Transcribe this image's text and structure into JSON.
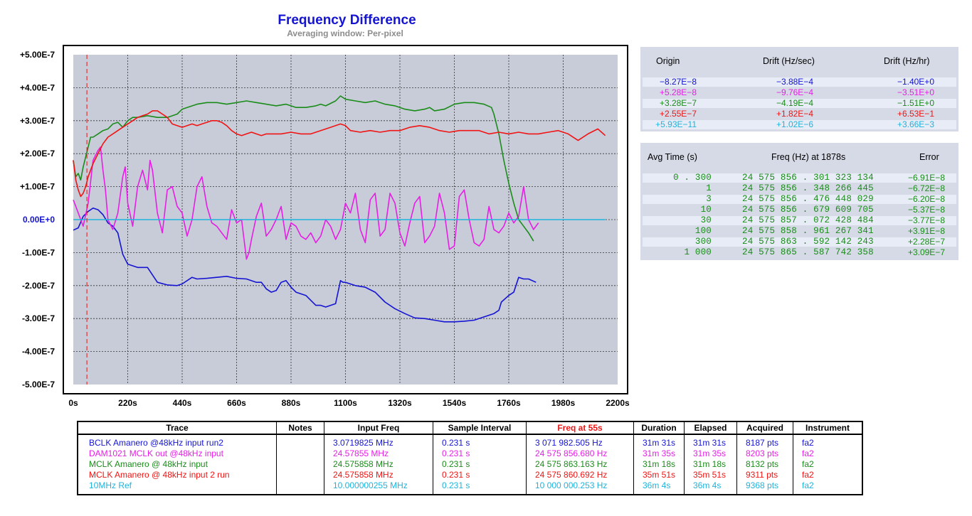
{
  "title": "Frequency Difference",
  "subtitle": "Averaging window: Per-pixel",
  "colors": {
    "blue": "#1414d2",
    "magenta": "#e61ee6",
    "green": "#1a8c1a",
    "red": "#f01414",
    "cyan": "#1eb4dc",
    "plot_bg": "#c8ccd8",
    "axis_text": "#000000"
  },
  "chart_data": {
    "type": "line",
    "title": "Frequency Difference",
    "subtitle": "Averaging window: Per-pixel",
    "xlim": [
      0,
      2200
    ],
    "ylim": [
      -5e-07,
      5e-07
    ],
    "x_ticks": [
      "0s",
      "220s",
      "440s",
      "660s",
      "880s",
      "1100s",
      "1320s",
      "1540s",
      "1760s",
      "1980s",
      "2200s"
    ],
    "y_ticks": [
      "+5.00E-7",
      "+4.00E-7",
      "+3.00E-7",
      "+2.00E-7",
      "+1.00E-7",
      "0.00E+0",
      "-1.00E-7",
      "-2.00E-7",
      "-3.00E-7",
      "-4.00E-7",
      "-5.00E-7"
    ],
    "marker_x": 55,
    "grid": true,
    "series": [
      {
        "name": "BCLK Amanero @48kHz input run2",
        "color": "#1414d2",
        "x": [
          0,
          20,
          40,
          60,
          80,
          100,
          120,
          140,
          160,
          180,
          200,
          220,
          260,
          300,
          340,
          380,
          420,
          440,
          480,
          500,
          540,
          580,
          620,
          660,
          700,
          740,
          760,
          780,
          800,
          820,
          840,
          860,
          880,
          900,
          940,
          980,
          1000,
          1020,
          1060,
          1080,
          1090,
          1100,
          1140,
          1180,
          1220,
          1260,
          1300,
          1340,
          1380,
          1420,
          1460,
          1500,
          1540,
          1580,
          1620,
          1660,
          1700,
          1720,
          1730,
          1760,
          1780,
          1800,
          1820,
          1840,
          1870
        ],
        "y": [
          -3.2e-08,
          -2.5e-08,
          1e-08,
          2.5e-08,
          3.5e-08,
          3e-08,
          1.5e-08,
          -1e-08,
          -2e-08,
          -4e-08,
          -1.05e-07,
          -1.35e-07,
          -1.45e-07,
          -1.45e-07,
          -1.9e-07,
          -1.98e-07,
          -2e-07,
          -1.95e-07,
          -1.75e-07,
          -1.8e-07,
          -1.78e-07,
          -1.75e-07,
          -1.72e-07,
          -1.78e-07,
          -1.8e-07,
          -1.9e-07,
          -1.9e-07,
          -2.1e-07,
          -2.2e-07,
          -2.15e-07,
          -1.9e-07,
          -1.85e-07,
          -2.05e-07,
          -2.2e-07,
          -2.3e-07,
          -2.6e-07,
          -2.6e-07,
          -2.65e-07,
          -2.55e-07,
          -1.85e-07,
          -1.9e-07,
          -1.9e-07,
          -2e-07,
          -2.05e-07,
          -2.2e-07,
          -2.5e-07,
          -2.7e-07,
          -2.85e-07,
          -2.98e-07,
          -3e-07,
          -3.05e-07,
          -3.1e-07,
          -3.1e-07,
          -3.08e-07,
          -3.05e-07,
          -2.95e-07,
          -2.85e-07,
          -2.75e-07,
          -2.5e-07,
          -2.3e-07,
          -2.2e-07,
          -1.75e-07,
          -1.8e-07,
          -1.8e-07,
          -1.9e-07
        ]
      },
      {
        "name": "DAM1021 MCLK out @48kHz input",
        "color": "#e61ee6",
        "x": [
          0,
          10,
          20,
          30,
          40,
          60,
          80,
          100,
          110,
          120,
          130,
          140,
          160,
          180,
          200,
          210,
          220,
          240,
          260,
          280,
          300,
          310,
          320,
          340,
          360,
          380,
          400,
          420,
          440,
          460,
          480,
          500,
          520,
          540,
          560,
          580,
          600,
          620,
          640,
          660,
          680,
          700,
          710,
          720,
          740,
          760,
          780,
          800,
          820,
          840,
          860,
          880,
          900,
          920,
          940,
          960,
          980,
          1000,
          1020,
          1040,
          1060,
          1080,
          1100,
          1120,
          1140,
          1160,
          1180,
          1200,
          1220,
          1240,
          1260,
          1280,
          1300,
          1320,
          1340,
          1360,
          1380,
          1400,
          1420,
          1440,
          1460,
          1480,
          1500,
          1520,
          1540,
          1560,
          1580,
          1600,
          1620,
          1640,
          1660,
          1680,
          1700,
          1720,
          1740,
          1760,
          1780,
          1800,
          1820,
          1840,
          1860,
          1880
        ],
        "y": [
          6e-08,
          4e-08,
          2e-08,
          0,
          -2e-08,
          5e-08,
          1.8e-07,
          2.1e-07,
          2.2e-07,
          1.5e-07,
          9e-08,
          0,
          -3e-08,
          2e-08,
          1.3e-07,
          1.6e-07,
          5e-08,
          -2e-08,
          1e-07,
          1.5e-07,
          9e-08,
          1.8e-07,
          1.5e-07,
          2e-08,
          -4e-08,
          9e-08,
          1e-07,
          4e-08,
          2e-08,
          -5e-08,
          0,
          1e-07,
          1.3e-07,
          4e-08,
          -1e-08,
          -2e-08,
          -4e-08,
          -6e-08,
          3e-08,
          -1e-08,
          0,
          -1.2e-07,
          -1e-07,
          -6e-08,
          1e-08,
          5e-08,
          -5e-08,
          -3e-08,
          0,
          4e-08,
          -6e-08,
          -1e-08,
          -2e-08,
          -5e-08,
          -6e-08,
          -4e-08,
          -7e-08,
          -5e-08,
          0,
          -2e-08,
          -6e-08,
          -3e-08,
          5e-08,
          2e-08,
          8e-08,
          -3e-08,
          -7e-08,
          6e-08,
          8e-08,
          -5e-08,
          -3e-08,
          8e-08,
          5e-08,
          -4e-08,
          -8e-08,
          -1e-08,
          5e-08,
          7e-08,
          -7e-08,
          -5e-08,
          -2e-08,
          8e-08,
          2e-08,
          -9e-08,
          -8e-08,
          7e-08,
          9e-08,
          0,
          -7e-08,
          -8e-08,
          -6e-08,
          4e-08,
          -3e-08,
          -4e-08,
          -2e-08,
          2e-08,
          -1e-08,
          1e-08,
          1e-07,
          0,
          -3e-08,
          -1e-08
        ]
      },
      {
        "name": "MCLK Amanero @ 48kHz input",
        "color": "#1a8c1a",
        "x": [
          0,
          10,
          20,
          30,
          40,
          50,
          60,
          70,
          80,
          100,
          120,
          140,
          160,
          180,
          200,
          220,
          240,
          260,
          300,
          340,
          380,
          420,
          440,
          460,
          500,
          540,
          580,
          620,
          660,
          700,
          740,
          780,
          820,
          860,
          880,
          900,
          940,
          980,
          1000,
          1020,
          1060,
          1080,
          1100,
          1140,
          1180,
          1220,
          1260,
          1300,
          1340,
          1380,
          1420,
          1440,
          1460,
          1500,
          1540,
          1580,
          1620,
          1660,
          1690,
          1700,
          1720,
          1740,
          1760,
          1780,
          1800,
          1820,
          1840,
          1860
        ],
        "y": [
          1.8e-07,
          1.3e-07,
          1.4e-07,
          1.2e-07,
          1.6e-07,
          1.9e-07,
          2.2e-07,
          2.5e-07,
          2.5e-07,
          2.6e-07,
          2.7e-07,
          2.75e-07,
          2.9e-07,
          2.95e-07,
          2.8e-07,
          3e-07,
          3.1e-07,
          3.1e-07,
          3.15e-07,
          3.1e-07,
          3.1e-07,
          3.2e-07,
          3.35e-07,
          3.4e-07,
          3.5e-07,
          3.55e-07,
          3.55e-07,
          3.5e-07,
          3.55e-07,
          3.6e-07,
          3.55e-07,
          3.5e-07,
          3.45e-07,
          3.5e-07,
          3.45e-07,
          3.4e-07,
          3.4e-07,
          3.45e-07,
          3.5e-07,
          3.45e-07,
          3.6e-07,
          3.75e-07,
          3.65e-07,
          3.6e-07,
          3.55e-07,
          3.6e-07,
          3.5e-07,
          3.45e-07,
          3.35e-07,
          3.3e-07,
          3.35e-07,
          3.4e-07,
          3.3e-07,
          3.35e-07,
          3.5e-07,
          3.55e-07,
          3.55e-07,
          3.5e-07,
          3.4e-07,
          3.2e-07,
          2.6e-07,
          1.8e-07,
          1.1e-07,
          5e-08,
          0,
          -2e-08,
          -4e-08,
          -6.5e-08
        ]
      },
      {
        "name": "MCLK Amanero @ 48kHz input 2 run",
        "color": "#f01414",
        "x": [
          0,
          10,
          20,
          30,
          40,
          50,
          60,
          70,
          80,
          100,
          120,
          140,
          160,
          180,
          200,
          220,
          240,
          260,
          280,
          300,
          320,
          340,
          360,
          380,
          400,
          420,
          440,
          460,
          480,
          500,
          520,
          540,
          560,
          580,
          600,
          620,
          640,
          660,
          680,
          700,
          720,
          740,
          760,
          780,
          800,
          840,
          880,
          920,
          960,
          1000,
          1040,
          1080,
          1100,
          1120,
          1160,
          1200,
          1240,
          1280,
          1320,
          1360,
          1400,
          1440,
          1480,
          1520,
          1560,
          1600,
          1640,
          1680,
          1720,
          1760,
          1800,
          1840,
          1880,
          1920,
          1960,
          2000,
          2040,
          2080,
          2120,
          2150
        ],
        "y": [
          1.8e-07,
          1.2e-07,
          9e-08,
          7e-08,
          8e-08,
          1e-07,
          1.3e-07,
          1.5e-07,
          1.7e-07,
          2e-07,
          2.3e-07,
          2.5e-07,
          2.6e-07,
          2.7e-07,
          2.8e-07,
          2.9e-07,
          3e-07,
          3.1e-07,
          3.15e-07,
          3.2e-07,
          3.3e-07,
          3.3e-07,
          3.2e-07,
          3.1e-07,
          2.9e-07,
          2.85e-07,
          2.8e-07,
          2.85e-07,
          2.9e-07,
          2.85e-07,
          2.9e-07,
          2.95e-07,
          3e-07,
          3e-07,
          2.95e-07,
          2.85e-07,
          2.7e-07,
          2.6e-07,
          2.55e-07,
          2.6e-07,
          2.65e-07,
          2.6e-07,
          2.55e-07,
          2.6e-07,
          2.6e-07,
          2.6e-07,
          2.65e-07,
          2.6e-07,
          2.6e-07,
          2.7e-07,
          2.8e-07,
          2.9e-07,
          2.85e-07,
          2.7e-07,
          2.65e-07,
          2.7e-07,
          2.65e-07,
          2.7e-07,
          2.7e-07,
          2.8e-07,
          2.85e-07,
          2.8e-07,
          2.7e-07,
          2.65e-07,
          2.7e-07,
          2.7e-07,
          2.7e-07,
          2.6e-07,
          2.65e-07,
          2.6e-07,
          2.65e-07,
          2.6e-07,
          2.6e-07,
          2.65e-07,
          2.7e-07,
          2.6e-07,
          2.4e-07,
          2.6e-07,
          2.75e-07,
          2.55e-07
        ]
      },
      {
        "name": "10MHz Ref",
        "color": "#1eb4dc",
        "x": [
          0,
          2150
        ],
        "y": [
          0,
          0
        ]
      }
    ]
  },
  "origin_panel": {
    "headers": [
      "Origin",
      "Drift (Hz/sec)",
      "Drift (Hz/hr)"
    ],
    "rows": [
      {
        "origin": "−8.27E−8",
        "drift_s": "−3.88E−4",
        "drift_hr": "−1.40E+0",
        "color": "#1414d2"
      },
      {
        "origin": "+5.28E−8",
        "drift_s": "−9.76E−4",
        "drift_hr": "−3.51E+0",
        "color": "#e61ee6"
      },
      {
        "origin": "+3.28E−7",
        "drift_s": "−4.19E−4",
        "drift_hr": "−1.51E+0",
        "color": "#1a8c1a"
      },
      {
        "origin": "+2.55E−7",
        "drift_s": "+1.82E−4",
        "drift_hr": "+6.53E−1",
        "color": "#f01414"
      },
      {
        "origin": "+5.93E−11",
        "drift_s": "+1.02E−6",
        "drift_hr": "+3.66E−3",
        "color": "#1eb4dc"
      }
    ]
  },
  "avg_panel": {
    "headers": [
      "Avg Time (s)",
      "Freq (Hz) at 1878s",
      "Error"
    ],
    "color": "#1a8c1a",
    "rows": [
      {
        "avg": "0 . 300",
        "freq": "24  575  856 . 301  323  134",
        "err": "−6.91E−8"
      },
      {
        "avg": "1",
        "freq": "24  575  856 . 348  266  445",
        "err": "−6.72E−8"
      },
      {
        "avg": "3",
        "freq": "24  575  856 . 476  448  029",
        "err": "−6.20E−8"
      },
      {
        "avg": "10",
        "freq": "24  575  856 . 679  609  705",
        "err": "−5.37E−8"
      },
      {
        "avg": "30",
        "freq": "24  575  857 . 072  428  484",
        "err": "−3.77E−8"
      },
      {
        "avg": "100",
        "freq": "24  575  858 . 961  267  341",
        "err": "+3.91E−8"
      },
      {
        "avg": "300",
        "freq": "24  575  863 . 592  142  243",
        "err": "+2.28E−7"
      },
      {
        "avg": "1  000",
        "freq": "24  575  865 . 587  742  358",
        "err": "+3.09E−7"
      }
    ]
  },
  "trace_table": {
    "headers": [
      "Trace",
      "Notes",
      "Input Freq",
      "Sample Interval",
      "Freq at 55s",
      "Duration",
      "Elapsed",
      "Acquired",
      "Instrument"
    ],
    "freq_header_color": "#f01414",
    "rows": [
      {
        "trace": "BCLK Amanero @48kHz input run2",
        "notes": "",
        "input": "3.0719825 MHz",
        "interval": "0.231 s",
        "freq55": "3 071 982.505 Hz",
        "duration": "31m 31s",
        "elapsed": "31m 31s",
        "acquired": "8187 pts",
        "instrument": "fa2",
        "color": "#1414d2"
      },
      {
        "trace": "DAM1021 MCLK out @48kHz input",
        "notes": "",
        "input": "24.57855 MHz",
        "interval": "0.231 s",
        "freq55": "24 575 856.680 Hz",
        "duration": "31m 35s",
        "elapsed": "31m 35s",
        "acquired": "8203 pts",
        "instrument": "fa2",
        "color": "#e61ee6"
      },
      {
        "trace": "MCLK Amanero @ 48kHz input",
        "notes": "",
        "input": "24.575858 MHz",
        "interval": "0.231 s",
        "freq55": "24 575 863.163 Hz",
        "duration": "31m 18s",
        "elapsed": "31m 18s",
        "acquired": "8132 pts",
        "instrument": "fa2",
        "color": "#1a8c1a"
      },
      {
        "trace": "MCLK Amanero @ 48kHz input 2 run",
        "notes": "",
        "input": "24.575858 MHz",
        "interval": "0.231 s",
        "freq55": "24 575 860.692 Hz",
        "duration": "35m 51s",
        "elapsed": "35m 51s",
        "acquired": "9311 pts",
        "instrument": "fa2",
        "color": "#f01414"
      },
      {
        "trace": "10MHz Ref",
        "notes": "",
        "input": "10.000000255 MHz",
        "interval": "0.231 s",
        "freq55": "10 000 000.253 Hz",
        "duration": "36m 4s",
        "elapsed": "36m 4s",
        "acquired": "9368 pts",
        "instrument": "fa2",
        "color": "#1eb4dc"
      }
    ]
  }
}
